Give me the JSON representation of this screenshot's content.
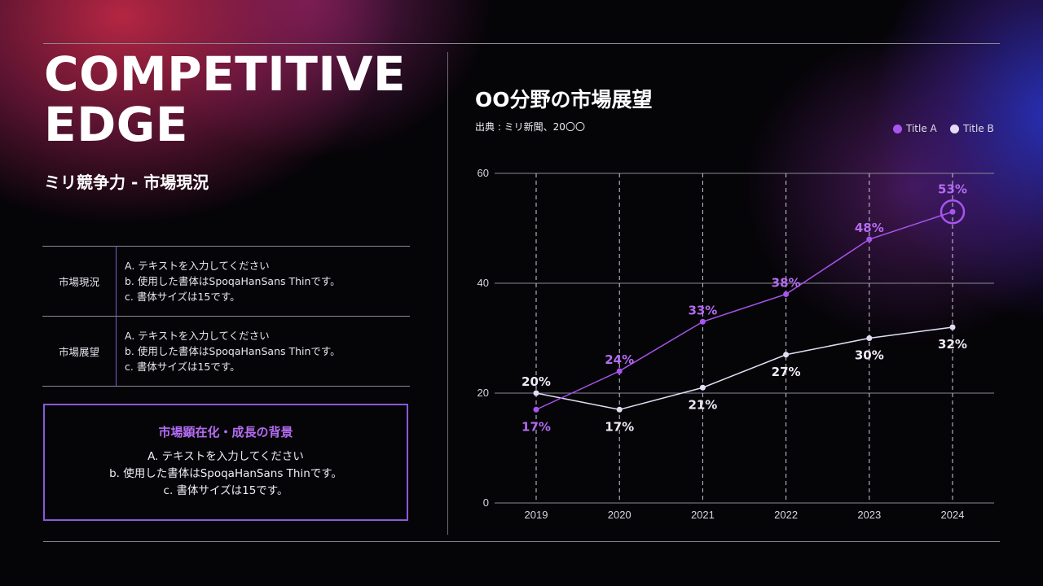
{
  "slide": {
    "title_lines": [
      "COMPETITIVE",
      "EDGE"
    ],
    "subtitle": "ミリ競争力 - 市場現況"
  },
  "table": {
    "rows": [
      {
        "label": "市場現況",
        "lines": [
          "A. テキストを入力してください",
          "b. 使用した書体はSpoqaHanSans Thinです。",
          "c. 書体サイズは15です。"
        ]
      },
      {
        "label": "市場展望",
        "lines": [
          "A. テキストを入力してください",
          "b. 使用した書体はSpoqaHanSans Thinです。",
          "c. 書体サイズは15です。"
        ]
      }
    ]
  },
  "background_box": {
    "title": "市場顕在化・成長の背景",
    "lines": [
      "A. テキストを入力してください",
      "b. 使用した書体はSpoqaHanSans Thinです。",
      "c. 書体サイズは15です。"
    ]
  },
  "colors": {
    "series_a": "#a855f0",
    "series_b": "#e4dcf4",
    "label_a": "#b46cf2",
    "label_b": "#efeaf8"
  },
  "chart_data": {
    "type": "line",
    "title": "OO分野の市場展望",
    "source": "出典 : ミリ新聞、20〇〇",
    "categories": [
      "2019",
      "2020",
      "2021",
      "2022",
      "2023",
      "2024"
    ],
    "y_ticks": [
      "0",
      "20",
      "40",
      "60"
    ],
    "ylim": [
      0,
      60
    ],
    "series": [
      {
        "name": "Title A",
        "values": [
          17,
          24,
          33,
          38,
          48,
          53
        ],
        "labels": [
          "17%",
          "24%",
          "33%",
          "38%",
          "48%",
          "53%"
        ]
      },
      {
        "name": "Title B",
        "values": [
          20,
          17,
          21,
          27,
          30,
          32
        ],
        "labels": [
          "20%",
          "17%",
          "21%",
          "27%",
          "30%",
          "32%"
        ]
      }
    ],
    "highlight": {
      "series": 0,
      "index": 5
    },
    "legend_position": "top-right"
  }
}
